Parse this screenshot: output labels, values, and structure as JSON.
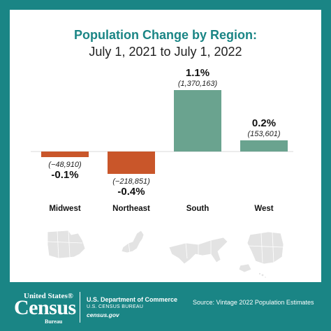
{
  "chart_data": {
    "type": "bar",
    "title": "Population Change by Region:",
    "subtitle": "July 1, 2021 to July 1, 2022",
    "categories": [
      "Midwest",
      "Northeast",
      "South",
      "West"
    ],
    "values": [
      -0.1,
      -0.4,
      1.1,
      0.2
    ],
    "percent_labels": [
      "-0.1%",
      "-0.4%",
      "1.1%",
      "0.2%"
    ],
    "count_labels": [
      "(−48,910)",
      "(−218,851)",
      "(1,370,163)",
      "(153,601)"
    ],
    "counts": [
      -48910,
      -218851,
      1370163,
      153601
    ],
    "bar_colors": [
      "#c9562a",
      "#c9562a",
      "#6aa38f",
      "#6aa38f"
    ],
    "grid": false,
    "legend": "none"
  },
  "map_icon_names": [
    "midwest-map-icon",
    "northeast-map-icon",
    "south-map-icon",
    "west-map-icon"
  ],
  "colors": {
    "frame": "#1a8585",
    "title": "#1a8585",
    "positive": "#6aa38f",
    "negative": "#c9562a",
    "map": "#e3e3e3"
  },
  "footer": {
    "logo_top": "United States®",
    "logo_main": "Census",
    "logo_bottom": "Bureau",
    "department": "U.S. Department of Commerce",
    "bureau": "U.S. CENSUS BUREAU",
    "website": "census.gov",
    "source": "Source: Vintage 2022 Population Estimates"
  }
}
